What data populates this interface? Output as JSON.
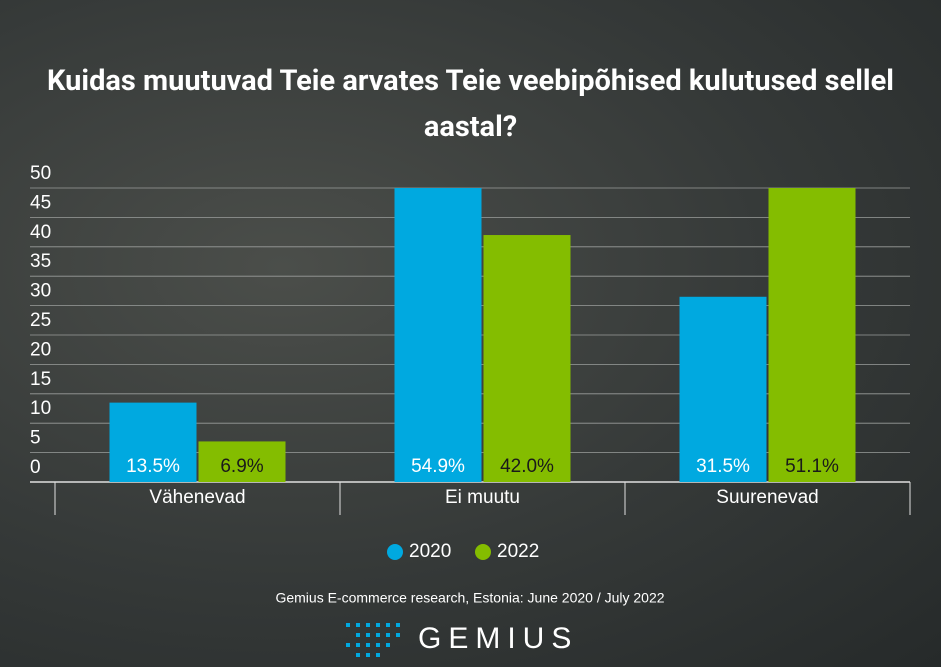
{
  "chart_data": {
    "type": "bar",
    "title": "Kuidas muutuvad Teie arvates Teie veebipõhised kulutused sellel aastal?",
    "categories": [
      "Vähenevad",
      "Ei muutu",
      "Suurenevad"
    ],
    "series": [
      {
        "name": "2020",
        "color": "#00a9e0",
        "values": [
          13.5,
          54.9,
          31.5
        ],
        "value_labels": [
          "13.5%",
          "54.9%",
          "31.5%"
        ]
      },
      {
        "name": "2022",
        "color": "#84bd00",
        "values": [
          6.9,
          42.0,
          51.1
        ],
        "value_labels": [
          "6.9%",
          "42.0%",
          "51.1%"
        ]
      }
    ],
    "ylim": [
      0,
      50
    ],
    "yticks": [
      0,
      5,
      10,
      15,
      20,
      25,
      30,
      35,
      40,
      45,
      50
    ],
    "grid": true,
    "legend": "bottom",
    "source": "Gemius E-commerce research, Estonia: June 2020 / July 2022",
    "logo": "GEMIUS"
  }
}
